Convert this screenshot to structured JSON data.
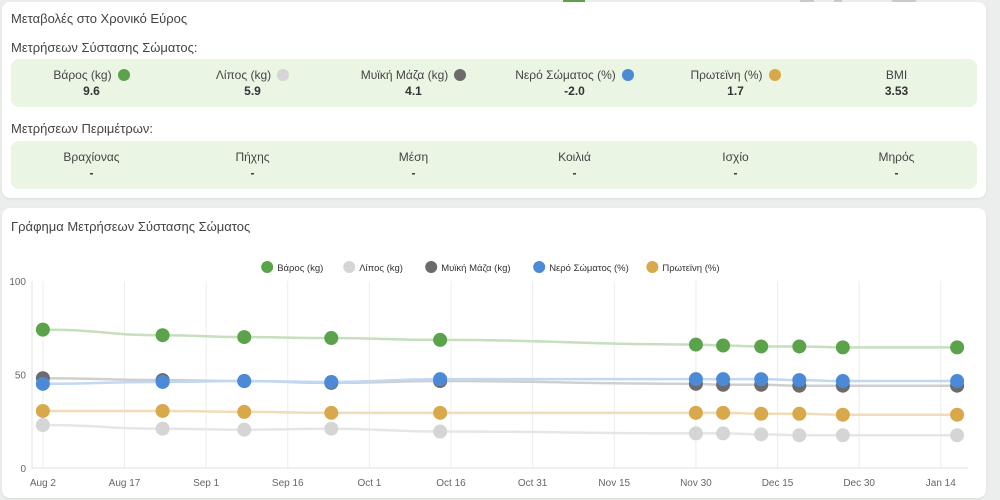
{
  "summary": {
    "title": "Μεταβολές στο Χρονικό Εύρος",
    "composition_label": "Μετρήσεων Σύστασης Σώματος:",
    "composition": [
      {
        "label": "Βάρος (kg)",
        "value": "9.6",
        "color": "#5aa34a"
      },
      {
        "label": "Λίπος (kg)",
        "value": "5.9",
        "color": "#d5d5d5"
      },
      {
        "label": "Μυϊκή Μάζα (kg)",
        "value": "4.1",
        "color": "#6b6b6b"
      },
      {
        "label": "Νερό Σώματος (%)",
        "value": "-2.0",
        "color": "#4a8ad7"
      },
      {
        "label": "Πρωτεϊνη (%)",
        "value": "1.7",
        "color": "#d8a84a"
      },
      {
        "label": "BMI",
        "value": "3.53",
        "color": ""
      }
    ],
    "perimeter_label": "Μετρήσεων Περιμέτρων:",
    "perimeters": [
      {
        "label": "Βραχίονας",
        "value": "-"
      },
      {
        "label": "Πήχης",
        "value": "-"
      },
      {
        "label": "Μέση",
        "value": "-"
      },
      {
        "label": "Κοιλιά",
        "value": "-"
      },
      {
        "label": "Ισχίο",
        "value": "-"
      },
      {
        "label": "Μηρός",
        "value": "-"
      }
    ]
  },
  "chart_card": {
    "title": "Γράφημα Μετρήσεων Σύστασης Σώματος"
  },
  "chart_data": {
    "type": "line",
    "title": "",
    "xlabel": "",
    "ylabel": "",
    "ylim": [
      0,
      100
    ],
    "yticks": [
      "0",
      "50",
      "100"
    ],
    "xticks": [
      "Aug 2",
      "Aug 17",
      "Sep 1",
      "Sep 16",
      "Oct 1",
      "Oct 16",
      "Oct 31",
      "Nov 15",
      "Nov 30",
      "Dec 15",
      "Dec 30",
      "Jan 14"
    ],
    "xtick_days": [
      0,
      15,
      30,
      45,
      60,
      75,
      90,
      105,
      120,
      135,
      150,
      165
    ],
    "xrange_days": [
      -2,
      170
    ],
    "x_days": [
      0,
      22,
      37,
      53,
      73,
      120,
      125,
      132,
      139,
      147,
      168
    ],
    "legend_position": "top-center",
    "grid": "vertical",
    "series": [
      {
        "name": "Βάρος (kg)",
        "color": "#5aa34a",
        "line_color": "#c6dfbd",
        "values": [
          74,
          71,
          70,
          69.5,
          68.5,
          66,
          65.5,
          65,
          65,
          64.5,
          64.5
        ]
      },
      {
        "name": "Λίπος (kg)",
        "color": "#d5d5d5",
        "line_color": "#e6e6e6",
        "values": [
          23,
          21,
          20.5,
          21,
          19.5,
          18.5,
          18.5,
          18,
          17.5,
          17.5,
          17.5
        ]
      },
      {
        "name": "Μυϊκή Μάζα (kg)",
        "color": "#6b6b6b",
        "line_color": "#cfcfcf",
        "values": [
          48,
          47,
          46.5,
          45.5,
          46.5,
          45,
          44.5,
          44.5,
          44,
          44,
          44
        ]
      },
      {
        "name": "Νερό Σώματος (%)",
        "color": "#4a8ad7",
        "line_color": "#c2d8f2",
        "values": [
          45,
          46,
          46.5,
          46,
          47.5,
          47.5,
          47.5,
          47.5,
          47,
          46.5,
          46.5
        ]
      },
      {
        "name": "Πρωτεϊνη (%)",
        "color": "#d8a84a",
        "line_color": "#f0dcb8",
        "values": [
          30.5,
          30.5,
          30,
          29.5,
          29.5,
          29.5,
          29.5,
          29,
          29,
          28.5,
          28.5
        ]
      }
    ]
  }
}
